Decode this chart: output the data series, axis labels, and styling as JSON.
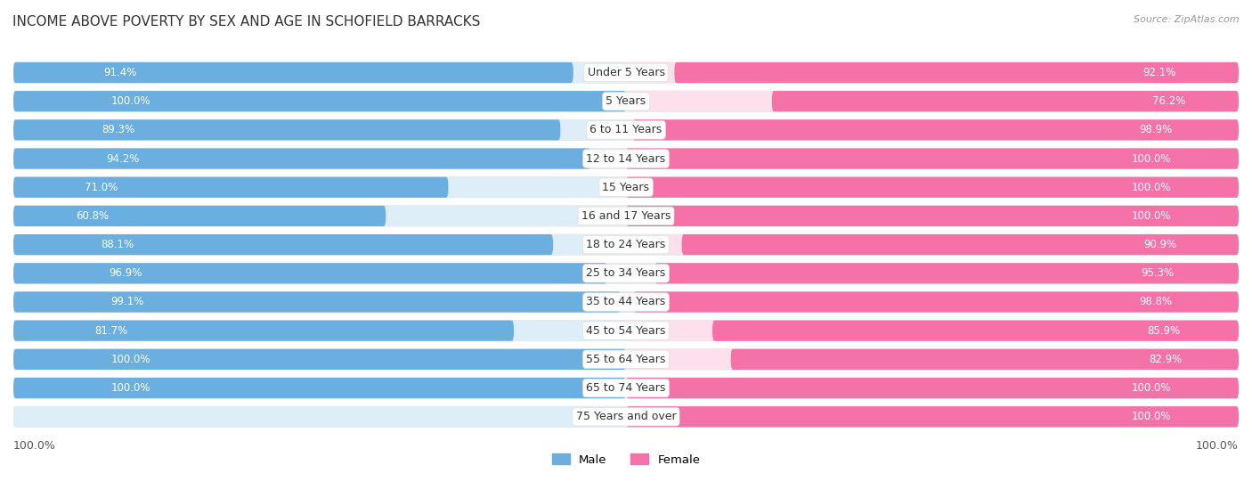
{
  "title": "INCOME ABOVE POVERTY BY SEX AND AGE IN SCHOFIELD BARRACKS",
  "source": "Source: ZipAtlas.com",
  "categories": [
    "Under 5 Years",
    "5 Years",
    "6 to 11 Years",
    "12 to 14 Years",
    "15 Years",
    "16 and 17 Years",
    "18 to 24 Years",
    "25 to 34 Years",
    "35 to 44 Years",
    "45 to 54 Years",
    "55 to 64 Years",
    "65 to 74 Years",
    "75 Years and over"
  ],
  "male_values": [
    91.4,
    100.0,
    89.3,
    94.2,
    71.0,
    60.8,
    88.1,
    96.9,
    99.1,
    81.7,
    100.0,
    100.0,
    0.0
  ],
  "female_values": [
    92.1,
    76.2,
    98.9,
    100.0,
    100.0,
    100.0,
    90.9,
    95.3,
    98.8,
    85.9,
    82.9,
    100.0,
    100.0
  ],
  "male_color": "#6aafe0",
  "female_color": "#f472a8",
  "male_bg_color": "#ddeef8",
  "female_bg_color": "#fce0ec",
  "background_color": "#ffffff",
  "row_bg_color": "#f2f2f2",
  "title_fontsize": 11,
  "label_fontsize": 9,
  "value_fontsize": 8.5,
  "source_fontsize": 8
}
